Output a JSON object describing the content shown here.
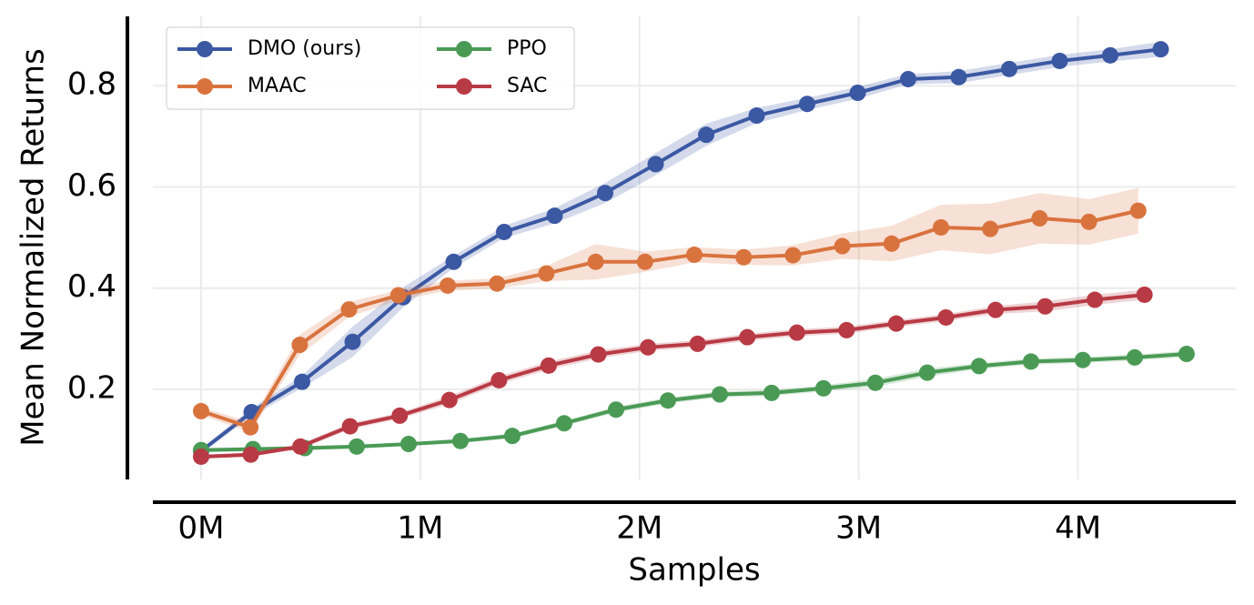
{
  "chart_data": {
    "type": "line",
    "xlabel": "Samples",
    "ylabel": "Mean Normalized Returns",
    "xlim": [
      -220000,
      4720000
    ],
    "ylim": [
      0.022,
      0.937
    ],
    "xticks": [
      {
        "value": 0,
        "label": "0M"
      },
      {
        "value": 1000000,
        "label": "1M"
      },
      {
        "value": 2000000,
        "label": "2M"
      },
      {
        "value": 3000000,
        "label": "3M"
      },
      {
        "value": 4000000,
        "label": "4M"
      }
    ],
    "yticks": [
      0.2,
      0.4,
      0.6,
      0.8
    ],
    "grid": true,
    "legend": "upper left",
    "series": [
      {
        "name": "DMO (ours)",
        "color": "#3b58a3",
        "x": [
          0,
          230400,
          460800,
          691200,
          921600,
          1152000,
          1382400,
          1612800,
          1843200,
          2073600,
          2304000,
          2534400,
          2764800,
          2995200,
          3225600,
          3456000,
          3686400,
          3916800,
          4147200,
          4377600
        ],
        "values": [
          0.078,
          0.155,
          0.215,
          0.294,
          0.382,
          0.452,
          0.511,
          0.543,
          0.588,
          0.645,
          0.703,
          0.741,
          0.764,
          0.786,
          0.813,
          0.817,
          0.833,
          0.849,
          0.86,
          0.872
        ],
        "errors": [
          0.005,
          0.008,
          0.012,
          0.03,
          0.02,
          0.012,
          0.012,
          0.015,
          0.02,
          0.022,
          0.022,
          0.015,
          0.012,
          0.012,
          0.01,
          0.012,
          0.012,
          0.012,
          0.012,
          0.015
        ]
      },
      {
        "name": "MAAC",
        "color": "#d9733e",
        "x": [
          0,
          225000,
          450000,
          675000,
          900000,
          1125000,
          1350000,
          1575000,
          1800000,
          2025000,
          2250000,
          2475000,
          2700000,
          2925000,
          3150000,
          3375000,
          3600000,
          3825000,
          4050000,
          4275000
        ],
        "values": [
          0.157,
          0.125,
          0.288,
          0.358,
          0.386,
          0.405,
          0.409,
          0.429,
          0.452,
          0.452,
          0.466,
          0.461,
          0.465,
          0.483,
          0.488,
          0.52,
          0.517,
          0.538,
          0.531,
          0.553
        ],
        "errors": [
          0.008,
          0.01,
          0.02,
          0.015,
          0.01,
          0.01,
          0.01,
          0.015,
          0.035,
          0.02,
          0.015,
          0.015,
          0.02,
          0.025,
          0.035,
          0.045,
          0.05,
          0.05,
          0.045,
          0.045
        ]
      },
      {
        "name": "PPO",
        "color": "#4a9a55",
        "x": [
          0,
          236600,
          473200,
          709800,
          946400,
          1183000,
          1419600,
          1656200,
          1892800,
          2129400,
          2366000,
          2602600,
          2839200,
          3075800,
          3312400,
          3549000,
          3785600,
          4022200,
          4258800,
          4495400
        ],
        "values": [
          0.08,
          0.082,
          0.084,
          0.087,
          0.092,
          0.098,
          0.108,
          0.133,
          0.16,
          0.178,
          0.19,
          0.193,
          0.202,
          0.213,
          0.233,
          0.246,
          0.255,
          0.258,
          0.263,
          0.27
        ],
        "errors": [
          0.004,
          0.004,
          0.004,
          0.004,
          0.004,
          0.004,
          0.005,
          0.005,
          0.006,
          0.006,
          0.006,
          0.006,
          0.006,
          0.008,
          0.008,
          0.006,
          0.006,
          0.006,
          0.006,
          0.006
        ]
      },
      {
        "name": "SAC",
        "color": "#b83a44",
        "x": [
          0,
          226500,
          453000,
          679500,
          906000,
          1132500,
          1359000,
          1585500,
          1812000,
          2038500,
          2265000,
          2491500,
          2718000,
          2944500,
          3171000,
          3397500,
          3624000,
          3850500,
          4077000,
          4303500
        ],
        "values": [
          0.067,
          0.071,
          0.087,
          0.127,
          0.148,
          0.179,
          0.218,
          0.247,
          0.269,
          0.283,
          0.29,
          0.303,
          0.312,
          0.317,
          0.33,
          0.342,
          0.357,
          0.364,
          0.377,
          0.387
        ],
        "errors": [
          0.004,
          0.004,
          0.005,
          0.006,
          0.006,
          0.008,
          0.008,
          0.008,
          0.008,
          0.007,
          0.007,
          0.007,
          0.007,
          0.007,
          0.007,
          0.007,
          0.008,
          0.01,
          0.01,
          0.01
        ]
      }
    ]
  }
}
